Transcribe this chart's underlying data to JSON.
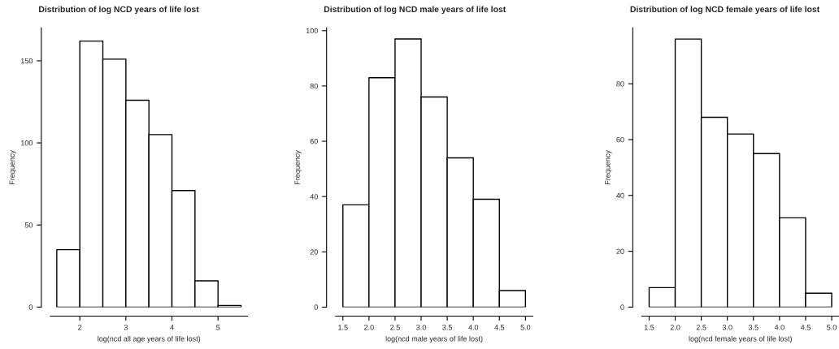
{
  "chart_data": [
    {
      "type": "histogram",
      "title": "Distribution of log NCD years of life lost",
      "xlabel": "log(ncd all age years of life lost)",
      "ylabel": "Frequency",
      "bins": [
        1.5,
        2.0,
        2.5,
        3.0,
        3.5,
        4.0,
        4.5,
        5.0,
        5.5
      ],
      "values": [
        35,
        162,
        151,
        126,
        105,
        71,
        16,
        1
      ],
      "color": "#ffffff",
      "xlim": [
        1.36,
        5.64
      ],
      "xticks": [
        2,
        3,
        4,
        5
      ],
      "ylim": [
        0,
        170
      ],
      "yticks": [
        0,
        50,
        100,
        150
      ],
      "grid": false
    },
    {
      "type": "histogram",
      "title": "Distribution of log NCD male years of life lost",
      "xlabel": "log(ncd male years of life lost)",
      "ylabel": "Frequency",
      "bins": [
        1.5,
        2.0,
        2.5,
        3.0,
        3.5,
        4.0,
        4.5,
        5.0
      ],
      "values": [
        37,
        83,
        97,
        76,
        54,
        39,
        6
      ],
      "color": "#ffffff",
      "xlim": [
        1.36,
        5.14
      ],
      "xticks": [
        {
          "value": 1.5,
          "label": "1.5"
        },
        {
          "value": 2.0,
          "label": "2.0"
        },
        {
          "value": 2.5,
          "label": "2.5"
        },
        {
          "value": 3.0,
          "label": "3.0"
        },
        {
          "value": 3.5,
          "label": "3.5"
        },
        {
          "value": 4.0,
          "label": "4.0"
        },
        {
          "value": 4.5,
          "label": "4.5"
        },
        {
          "value": 5.0,
          "label": "5.0"
        }
      ],
      "ylim": [
        0,
        101
      ],
      "yticks": [
        0,
        20,
        40,
        60,
        80,
        100
      ],
      "grid": false
    },
    {
      "type": "histogram",
      "title": "Distribution of log NCD female years of life lost",
      "xlabel": "log(ncd female years of life lost)",
      "ylabel": "Frequency",
      "bins": [
        1.5,
        2.0,
        2.5,
        3.0,
        3.5,
        4.0,
        4.5,
        5.0
      ],
      "values": [
        7,
        96,
        68,
        62,
        55,
        32,
        5
      ],
      "color": "#ffffff",
      "xlim": [
        1.36,
        5.14
      ],
      "xticks": [
        {
          "value": 1.5,
          "label": "1.5"
        },
        {
          "value": 2.0,
          "label": "2.0"
        },
        {
          "value": 2.5,
          "label": "2.5"
        },
        {
          "value": 3.0,
          "label": "3.0"
        },
        {
          "value": 3.5,
          "label": "3.5"
        },
        {
          "value": 4.0,
          "label": "4.0"
        },
        {
          "value": 4.5,
          "label": "4.5"
        },
        {
          "value": 5.0,
          "label": "5.0"
        }
      ],
      "ylim": [
        0,
        100
      ],
      "yticks": [
        0,
        20,
        40,
        60,
        80
      ],
      "grid": false
    }
  ]
}
